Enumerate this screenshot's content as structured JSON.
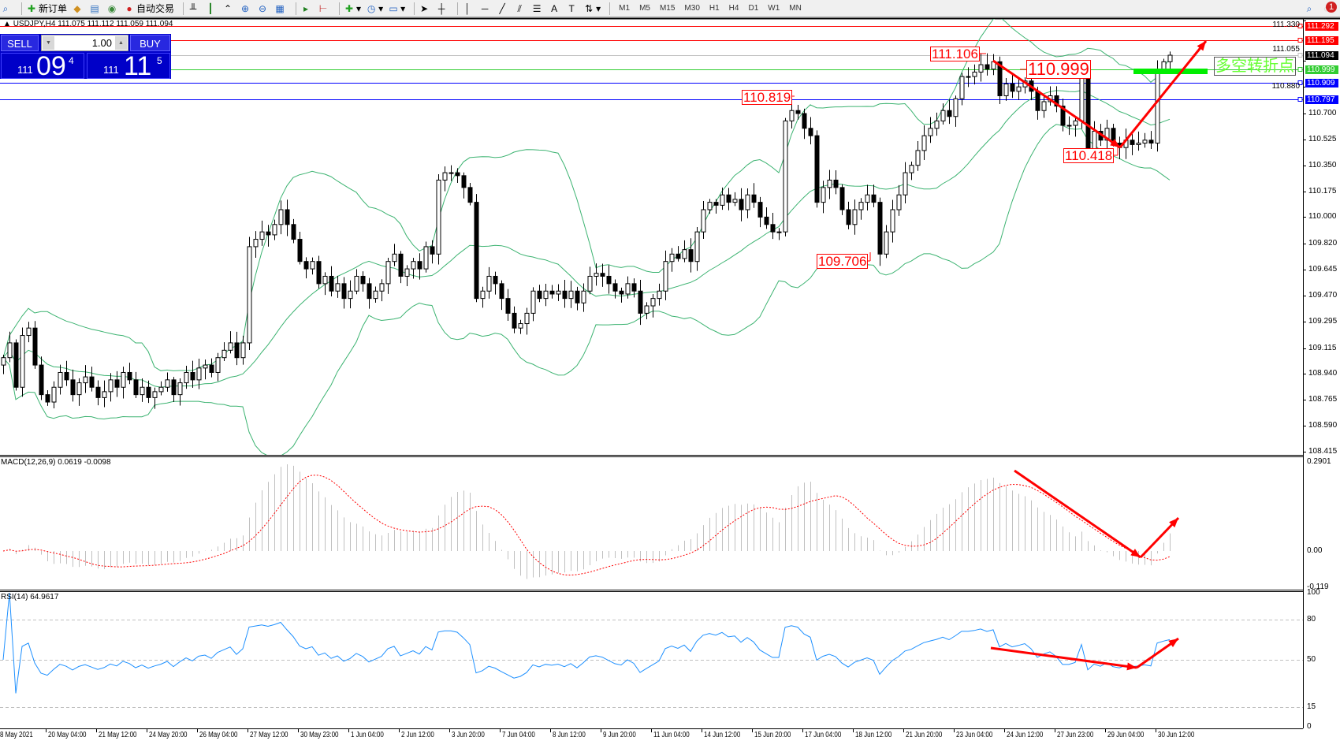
{
  "toolbar": {
    "new_order_label": "新订单",
    "auto_trading_label": "自动交易",
    "periods": [
      "M1",
      "M5",
      "M15",
      "M30",
      "H1",
      "H4",
      "D1",
      "W1",
      "MN"
    ],
    "notification_count": "1"
  },
  "chart_header": "USDJPY,H4  111.075 111.112 111.059 111.094",
  "trade_panel": {
    "sell_label": "SELL",
    "buy_label": "BUY",
    "lot": "1.00",
    "sell_price": {
      "big": "111",
      "main": "09",
      "pip": "4"
    },
    "buy_price": {
      "big": "111",
      "main": "11",
      "pip": "5"
    }
  },
  "price_axis": [
    "111.330",
    "111.055",
    "110.880",
    "110.700",
    "110.525",
    "110.350",
    "110.175",
    "110.000",
    "109.820",
    "109.645",
    "109.470",
    "109.295",
    "109.115",
    "108.940",
    "108.765",
    "108.590",
    "108.415"
  ],
  "price_lines": [
    {
      "value": "111.292",
      "color": "#ff0000",
      "text_color": "#ffffff"
    },
    {
      "value": "111.195",
      "color": "#ff0000",
      "text_color": "#ffffff"
    },
    {
      "value": "111.094",
      "color": "#000000",
      "line_color": "#c0c0c0",
      "text_color": "#ffffff"
    },
    {
      "value": "110.999",
      "color": "#32cd32",
      "text_color": "#ffffff"
    },
    {
      "value": "110.909",
      "color": "#0000ff",
      "text_color": "#ffffff"
    },
    {
      "value": "110.797",
      "color": "#0000ff",
      "text_color": "#ffffff"
    }
  ],
  "annotations": {
    "high_1": "111.106",
    "high_2": "110.819",
    "level": "110.999",
    "low_1": "110.418",
    "low_2": "109.706",
    "turning_point": "多空转折点"
  },
  "macd": {
    "label": "MACD(12,26,9) 0.0619 -0.0098",
    "axis": [
      "0.2901",
      "0.00",
      "-0.119"
    ]
  },
  "rsi": {
    "label": "RSI(14) 64.9617",
    "axis": [
      "100",
      "80",
      "50",
      "15",
      "0"
    ]
  },
  "time_axis": [
    "8 May 2021",
    "20 May 04:00",
    "21 May 12:00",
    "24 May 20:00",
    "26 May 04:00",
    "27 May 12:00",
    "30 May 23:00",
    "1 Jun 04:00",
    "2 Jun 12:00",
    "3 Jun 20:00",
    "7 Jun 04:00",
    "8 Jun 12:00",
    "9 Jun 20:00",
    "11 Jun 04:00",
    "14 Jun 12:00",
    "15 Jun 20:00",
    "17 Jun 04:00",
    "18 Jun 12:00",
    "21 Jun 20:00",
    "23 Jun 04:00",
    "24 Jun 12:00",
    "27 Jun 23:00",
    "29 Jun 04:00",
    "30 Jun 12:00"
  ],
  "colors": {
    "bollinger": "#3cb371",
    "macd_hist": "#c0c0c0",
    "macd_signal": "#ff0000",
    "rsi_line": "#1e90ff",
    "arrow": "#ff0000",
    "panel_blue": "#0000c8"
  },
  "chart_data": {
    "type": "candlestick",
    "symbol": "USDJPY",
    "timeframe": "H4",
    "indicators": [
      "Bollinger Bands",
      "MACD(12,26,9)",
      "RSI(14)"
    ],
    "ylim": [
      108.415,
      111.33
    ],
    "closes": [
      109.05,
      109.15,
      108.85,
      109.2,
      109.25,
      109.0,
      108.8,
      108.75,
      108.85,
      108.95,
      108.9,
      108.8,
      108.88,
      108.92,
      108.85,
      108.78,
      108.82,
      108.9,
      108.85,
      108.95,
      108.9,
      108.8,
      108.85,
      108.78,
      108.82,
      108.85,
      108.9,
      108.8,
      108.88,
      108.95,
      108.9,
      108.98,
      109.0,
      108.95,
      109.05,
      109.1,
      109.15,
      109.05,
      109.15,
      109.8,
      109.85,
      109.9,
      109.88,
      109.95,
      110.05,
      109.95,
      109.85,
      109.7,
      109.65,
      109.7,
      109.55,
      109.6,
      109.5,
      109.55,
      109.45,
      109.5,
      109.6,
      109.55,
      109.45,
      109.5,
      109.55,
      109.7,
      109.75,
      109.6,
      109.65,
      109.7,
      109.65,
      109.8,
      109.75,
      110.25,
      110.3,
      110.3,
      110.28,
      110.2,
      110.1,
      109.45,
      109.5,
      109.6,
      109.55,
      109.45,
      109.35,
      109.25,
      109.28,
      109.35,
      109.5,
      109.45,
      109.5,
      109.48,
      109.5,
      109.45,
      109.5,
      109.42,
      109.5,
      109.6,
      109.62,
      109.6,
      109.55,
      109.5,
      109.48,
      109.55,
      109.5,
      109.35,
      109.4,
      109.45,
      109.5,
      109.7,
      109.75,
      109.72,
      109.78,
      109.7,
      109.9,
      110.05,
      110.1,
      110.08,
      110.15,
      110.1,
      110.12,
      110.05,
      110.15,
      110.1,
      110.0,
      109.95,
      109.9,
      109.9,
      110.65,
      110.72,
      110.7,
      110.6,
      110.55,
      110.1,
      110.2,
      110.25,
      110.2,
      110.05,
      109.95,
      110.05,
      110.1,
      110.15,
      110.1,
      109.75,
      109.9,
      110.05,
      110.15,
      110.3,
      110.35,
      110.45,
      110.55,
      110.6,
      110.65,
      110.72,
      110.68,
      110.8,
      110.95,
      110.95,
      110.98,
      111.03,
      111.0,
      111.05,
      110.82,
      110.9,
      110.85,
      110.88,
      110.92,
      110.85,
      110.72,
      110.78,
      110.82,
      110.75,
      110.62,
      110.62,
      110.65,
      110.98,
      110.45,
      110.58,
      110.52,
      110.6,
      110.5,
      110.47,
      110.52,
      110.49,
      110.5,
      110.52,
      110.5,
      110.99,
      111.05,
      111.094
    ]
  }
}
